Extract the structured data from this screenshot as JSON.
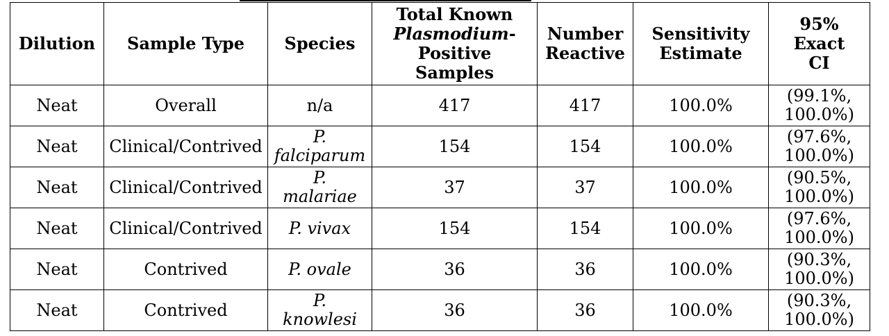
{
  "table": {
    "headers": {
      "dilution": "Dilution",
      "sample_type": "Sample Type",
      "species": "Species",
      "total_known_l1": "Total Known",
      "total_known_l2_italic": "Plasmodium",
      "total_known_l2_suffix": "-",
      "total_known_l3": "Positive",
      "total_known_l4": "Samples",
      "number_reactive_l1": "Number",
      "number_reactive_l2": "Reactive",
      "sensitivity_l1": "Sensitivity",
      "sensitivity_l2": "Estimate",
      "ci_l1": "95%",
      "ci_l2": "Exact",
      "ci_l3": "CI"
    },
    "rows": [
      {
        "dilution": "Neat",
        "sample_type": "Overall",
        "species_l1": "n/a",
        "species_l2": "",
        "total": "417",
        "reactive": "417",
        "sensitivity": "100.0%",
        "ci_l1": "(99.1%,",
        "ci_l2": "100.0%)"
      },
      {
        "dilution": "Neat",
        "sample_type": "Clinical/Contrived",
        "species_l1": "P.",
        "species_l2": "falciparum",
        "total": "154",
        "reactive": "154",
        "sensitivity": "100.0%",
        "ci_l1": "(97.6%,",
        "ci_l2": "100.0%)"
      },
      {
        "dilution": "Neat",
        "sample_type": "Clinical/Contrived",
        "species_l1": "P.",
        "species_l2": "malariae",
        "total": "37",
        "reactive": "37",
        "sensitivity": "100.0%",
        "ci_l1": "(90.5%,",
        "ci_l2": "100.0%)"
      },
      {
        "dilution": "Neat",
        "sample_type": "Clinical/Contrived",
        "species_l1": "P. vivax",
        "species_l2": "",
        "total": "154",
        "reactive": "154",
        "sensitivity": "100.0%",
        "ci_l1": "(97.6%,",
        "ci_l2": "100.0%)"
      },
      {
        "dilution": "Neat",
        "sample_type": "Contrived",
        "species_l1": "P. ovale",
        "species_l2": "",
        "total": "36",
        "reactive": "36",
        "sensitivity": "100.0%",
        "ci_l1": "(90.3%,",
        "ci_l2": "100.0%)"
      },
      {
        "dilution": "Neat",
        "sample_type": "Contrived",
        "species_l1": "P.",
        "species_l2": "knowlesi",
        "total": "36",
        "reactive": "36",
        "sensitivity": "100.0%",
        "ci_l1": "(90.3%,",
        "ci_l2": "100.0%)"
      }
    ]
  }
}
